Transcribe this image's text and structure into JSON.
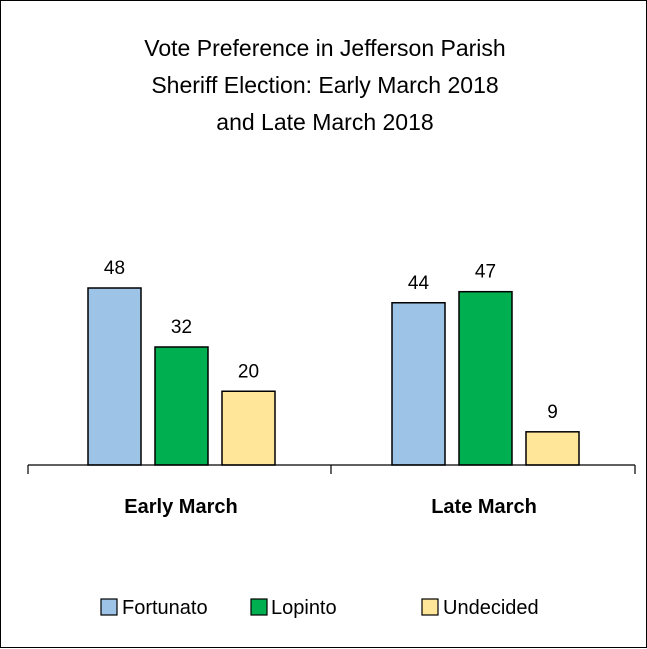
{
  "chart_data": {
    "type": "bar",
    "title_lines": [
      "Vote Preference in Jefferson Parish",
      "Sheriff Election: Early March 2018",
      "and Late March 2018"
    ],
    "categories": [
      "Early March",
      "Late March"
    ],
    "series": [
      {
        "name": "Fortunato",
        "values": [
          48,
          44
        ],
        "color": "#9DC3E6"
      },
      {
        "name": "Lopinto",
        "values": [
          32,
          47
        ],
        "color": "#00B050"
      },
      {
        "name": "Undecided",
        "values": [
          20,
          9
        ],
        "color": "#FFE699"
      }
    ],
    "ylim": [
      0,
      48
    ],
    "grid": false,
    "legend_position": "bottom"
  }
}
